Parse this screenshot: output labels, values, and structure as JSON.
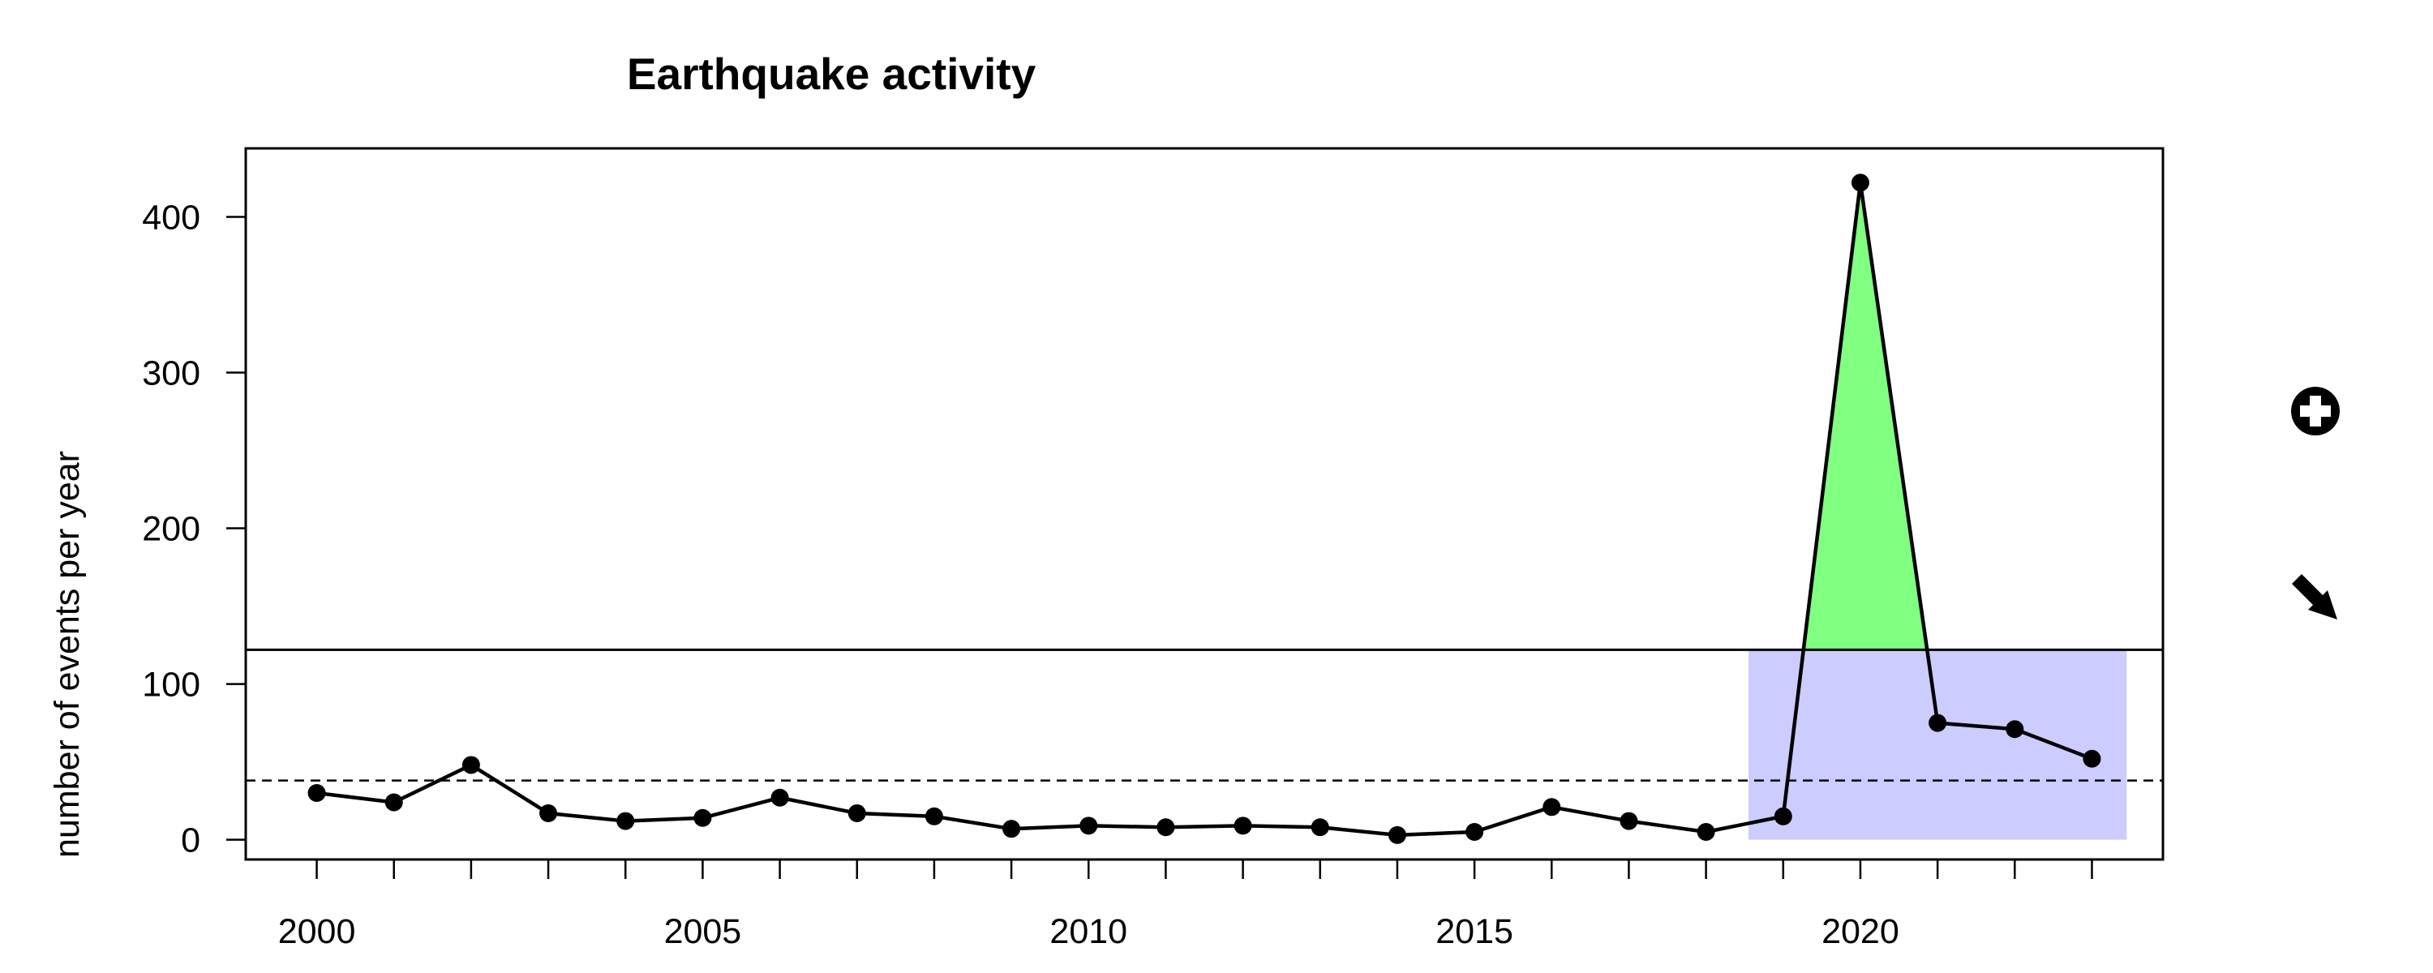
{
  "chart_data": {
    "type": "line",
    "title": "Earthquake activity",
    "xlabel": "",
    "ylabel": "number of events per year",
    "x": [
      2000,
      2001,
      2002,
      2003,
      2004,
      2005,
      2006,
      2007,
      2008,
      2009,
      2010,
      2011,
      2012,
      2013,
      2014,
      2015,
      2016,
      2017,
      2018,
      2019,
      2020,
      2021,
      2022,
      2023
    ],
    "series": [
      {
        "values": [
          30,
          24,
          48,
          17,
          12,
          14,
          27,
          17,
          15,
          7,
          9,
          8,
          9,
          8,
          3,
          5,
          21,
          12,
          5,
          15,
          422,
          75,
          71,
          52
        ],
        "color": "#000000"
      }
    ],
    "x_ticks": [
      2000,
      2005,
      2010,
      2015,
      2020
    ],
    "x_tick_labels": [
      "2000",
      "2005",
      "2010",
      "2015",
      "2020"
    ],
    "y_ticks": [
      0,
      100,
      200,
      300,
      400
    ],
    "y_tick_labels": [
      "0",
      "100",
      "200",
      "300",
      "400"
    ],
    "xlim": [
      1999.08,
      2023.92
    ],
    "ylim": [
      -12.7,
      444
    ],
    "reference_lines": {
      "mean_dashed": 38,
      "threshold_solid": 122
    },
    "highlight_region": {
      "x_range": [
        2018.55,
        2023.45
      ],
      "y_range": [
        0,
        122
      ],
      "color": "#ccccff"
    },
    "exceedance_fill_color": "#80ff80",
    "grid": false,
    "legend": "none"
  },
  "icons": {
    "zoom": "zoom-plus-icon",
    "pan": "pan-arrow-icon"
  }
}
